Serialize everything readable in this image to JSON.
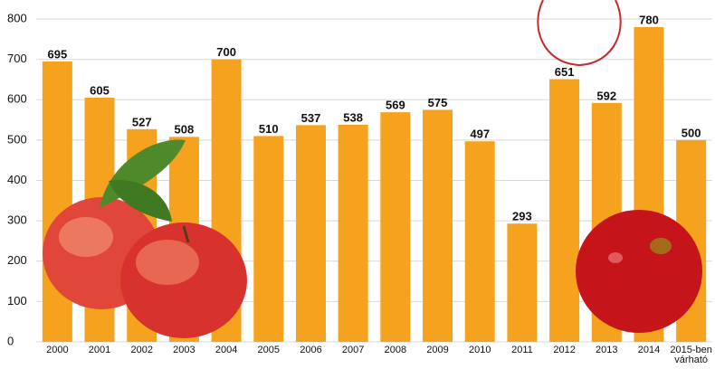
{
  "chart_data": {
    "type": "bar",
    "categories": [
      "2000",
      "2001",
      "2002",
      "2003",
      "2004",
      "2005",
      "2006",
      "2007",
      "2008",
      "2009",
      "2010",
      "2011",
      "2012",
      "2013",
      "2014",
      "2015-ben várható"
    ],
    "values": [
      695,
      605,
      527,
      508,
      700,
      510,
      537,
      538,
      569,
      575,
      497,
      293,
      651,
      592,
      780,
      500
    ],
    "color": "#f5a21e",
    "ylim": [
      0,
      800
    ],
    "yticks": [
      0,
      100,
      200,
      300,
      400,
      500,
      600,
      700,
      800
    ],
    "grid": true
  }
}
